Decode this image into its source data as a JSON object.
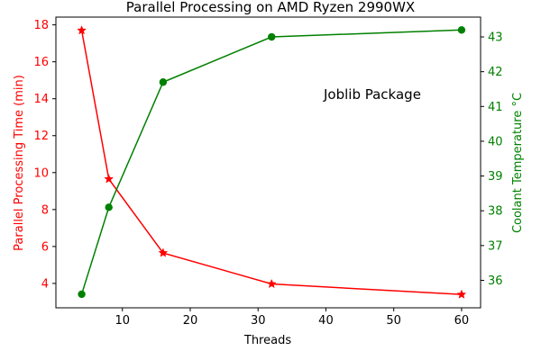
{
  "chart_data": {
    "type": "line",
    "title": "Parallel Processing on AMD Ryzen 2990WX",
    "xlabel": "Threads",
    "ylabel_left": "Parallel Processing Time (min)",
    "ylabel_right": "Coolant Temperature °C",
    "annotation": "Joblib Package",
    "grid": false,
    "x": [
      4,
      8,
      16,
      32,
      60
    ],
    "xlim": [
      0.2,
      62.8
    ],
    "ylim_left": [
      2.68,
      18.42
    ],
    "ylim_right": [
      35.21,
      43.57
    ],
    "x_ticks": [
      10,
      20,
      30,
      40,
      50,
      60
    ],
    "y_ticks_left": [
      4,
      6,
      8,
      10,
      12,
      14,
      16,
      18
    ],
    "y_ticks_right": [
      36,
      37,
      38,
      39,
      40,
      41,
      42,
      43
    ],
    "series": [
      {
        "axis": "left",
        "color": "#ff0000",
        "marker": "star",
        "values": [
          17.7,
          9.65,
          5.65,
          3.97,
          3.4
        ]
      },
      {
        "axis": "right",
        "color": "#008000",
        "marker": "circle",
        "values": [
          35.6,
          38.1,
          41.7,
          43.0,
          43.2
        ]
      }
    ]
  }
}
